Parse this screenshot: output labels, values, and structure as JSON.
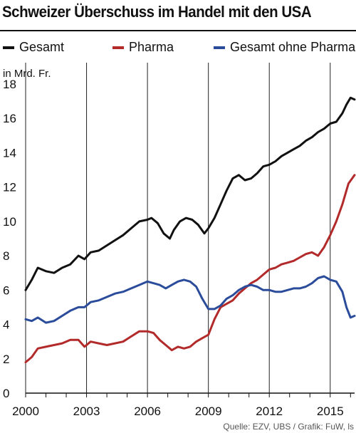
{
  "chart_data": {
    "type": "line",
    "title": "Schweizer Überschuss im Handel mit den USA",
    "ylabel": "in Mrd. Fr.",
    "xlabel": "",
    "xlim": [
      2000,
      2016.2
    ],
    "ylim": [
      0,
      18
    ],
    "x_ticks": [
      2000,
      2003,
      2006,
      2009,
      2012,
      2015
    ],
    "y_ticks": [
      0,
      2,
      4,
      6,
      8,
      10,
      12,
      14,
      16,
      18
    ],
    "grid": "vertical lines at x ticks",
    "legend_position": "top",
    "series": [
      {
        "name": "Gesamt",
        "color": "#111111",
        "x": [
          2000.0,
          2000.3,
          2000.6,
          2001.0,
          2001.4,
          2001.8,
          2002.2,
          2002.6,
          2002.9,
          2003.2,
          2003.6,
          2004.0,
          2004.4,
          2004.8,
          2005.2,
          2005.6,
          2006.0,
          2006.2,
          2006.5,
          2006.8,
          2007.1,
          2007.3,
          2007.6,
          2007.9,
          2008.2,
          2008.5,
          2008.8,
          2009.0,
          2009.3,
          2009.6,
          2009.9,
          2010.2,
          2010.5,
          2010.8,
          2011.1,
          2011.4,
          2011.7,
          2012.0,
          2012.3,
          2012.6,
          2012.9,
          2013.2,
          2013.5,
          2013.8,
          2014.1,
          2014.4,
          2014.7,
          2015.0,
          2015.3,
          2015.6,
          2015.8,
          2016.0,
          2016.2
        ],
        "y": [
          6.0,
          6.6,
          7.3,
          7.1,
          7.0,
          7.3,
          7.5,
          8.0,
          7.8,
          8.2,
          8.3,
          8.6,
          8.9,
          9.2,
          9.6,
          10.0,
          10.1,
          10.2,
          9.9,
          9.3,
          9.0,
          9.5,
          10.0,
          10.2,
          10.1,
          9.8,
          9.3,
          9.6,
          10.2,
          11.0,
          11.8,
          12.5,
          12.7,
          12.4,
          12.5,
          12.8,
          13.2,
          13.3,
          13.5,
          13.8,
          14.0,
          14.2,
          14.4,
          14.7,
          14.9,
          15.2,
          15.4,
          15.7,
          15.8,
          16.3,
          16.8,
          17.2,
          17.1
        ]
      },
      {
        "name": "Pharma",
        "color": "#b22a2a",
        "x": [
          2000.0,
          2000.3,
          2000.6,
          2001.0,
          2001.4,
          2001.8,
          2002.2,
          2002.6,
          2002.9,
          2003.2,
          2003.6,
          2004.0,
          2004.4,
          2004.8,
          2005.2,
          2005.6,
          2006.0,
          2006.3,
          2006.6,
          2006.9,
          2007.2,
          2007.5,
          2007.8,
          2008.1,
          2008.4,
          2008.7,
          2009.0,
          2009.3,
          2009.6,
          2009.9,
          2010.2,
          2010.5,
          2010.8,
          2011.1,
          2011.4,
          2011.7,
          2012.0,
          2012.3,
          2012.6,
          2012.9,
          2013.2,
          2013.5,
          2013.8,
          2014.1,
          2014.4,
          2014.7,
          2015.0,
          2015.3,
          2015.6,
          2015.9,
          2016.2
        ],
        "y": [
          1.8,
          2.1,
          2.6,
          2.7,
          2.8,
          2.9,
          3.1,
          3.1,
          2.7,
          3.0,
          2.9,
          2.8,
          2.9,
          3.0,
          3.3,
          3.6,
          3.6,
          3.5,
          3.1,
          2.8,
          2.5,
          2.7,
          2.6,
          2.7,
          3.0,
          3.2,
          3.4,
          4.3,
          5.0,
          5.2,
          5.4,
          5.8,
          6.1,
          6.4,
          6.6,
          6.9,
          7.2,
          7.3,
          7.5,
          7.6,
          7.7,
          7.9,
          8.1,
          8.2,
          8.0,
          8.5,
          9.2,
          10.0,
          11.0,
          12.2,
          12.7
        ]
      },
      {
        "name": "Gesamt ohne Pharma",
        "color": "#2b4c9b",
        "x": [
          2000.0,
          2000.3,
          2000.6,
          2001.0,
          2001.4,
          2001.8,
          2002.2,
          2002.6,
          2002.9,
          2003.2,
          2003.6,
          2004.0,
          2004.4,
          2004.8,
          2005.2,
          2005.6,
          2006.0,
          2006.3,
          2006.6,
          2006.9,
          2007.2,
          2007.5,
          2007.8,
          2008.1,
          2008.4,
          2008.7,
          2009.0,
          2009.3,
          2009.6,
          2009.9,
          2010.2,
          2010.5,
          2010.8,
          2011.1,
          2011.4,
          2011.7,
          2012.0,
          2012.3,
          2012.6,
          2012.9,
          2013.2,
          2013.5,
          2013.8,
          2014.1,
          2014.4,
          2014.7,
          2015.0,
          2015.3,
          2015.6,
          2015.8,
          2016.0,
          2016.2
        ],
        "y": [
          4.3,
          4.2,
          4.4,
          4.1,
          4.2,
          4.5,
          4.8,
          5.0,
          5.0,
          5.3,
          5.4,
          5.6,
          5.8,
          5.9,
          6.1,
          6.3,
          6.5,
          6.4,
          6.3,
          6.1,
          6.3,
          6.5,
          6.6,
          6.5,
          6.2,
          5.5,
          4.9,
          4.9,
          5.1,
          5.5,
          5.7,
          6.0,
          6.2,
          6.3,
          6.2,
          6.0,
          6.0,
          5.9,
          5.9,
          6.0,
          6.1,
          6.1,
          6.2,
          6.4,
          6.7,
          6.8,
          6.6,
          6.5,
          5.9,
          5.0,
          4.4,
          4.5
        ]
      }
    ],
    "source": "Quelle: EZV, UBS / Grafik: FuW, ls"
  }
}
